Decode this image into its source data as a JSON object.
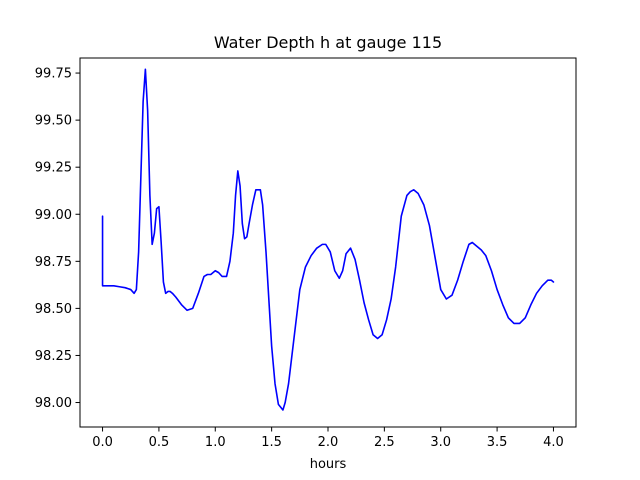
{
  "chart_data": {
    "type": "line",
    "title": "Water Depth h at gauge 115",
    "xlabel": "hours",
    "ylabel": "",
    "xlim": [
      -0.2,
      4.2
    ],
    "ylim": [
      97.87,
      99.83
    ],
    "grid": false,
    "legend": "none",
    "x_ticks": [
      0.0,
      0.5,
      1.0,
      1.5,
      2.0,
      2.5,
      3.0,
      3.5,
      4.0
    ],
    "x_tick_labels": [
      "0.0",
      "0.5",
      "1.0",
      "1.5",
      "2.0",
      "2.5",
      "3.0",
      "3.5",
      "4.0"
    ],
    "y_ticks": [
      98.0,
      98.25,
      98.5,
      98.75,
      99.0,
      99.25,
      99.5,
      99.75
    ],
    "y_tick_labels": [
      "98.00",
      "98.25",
      "98.50",
      "98.75",
      "99.00",
      "99.25",
      "99.50",
      "99.75"
    ],
    "series": [
      {
        "color": "#0000ff",
        "x": [
          0.0,
          0.0,
          0.05,
          0.1,
          0.15,
          0.2,
          0.25,
          0.28,
          0.3,
          0.32,
          0.34,
          0.36,
          0.38,
          0.4,
          0.42,
          0.44,
          0.46,
          0.48,
          0.5,
          0.52,
          0.54,
          0.56,
          0.58,
          0.6,
          0.62,
          0.65,
          0.7,
          0.75,
          0.8,
          0.85,
          0.9,
          0.93,
          0.96,
          1.0,
          1.03,
          1.06,
          1.1,
          1.13,
          1.16,
          1.18,
          1.2,
          1.22,
          1.24,
          1.26,
          1.28,
          1.3,
          1.33,
          1.36,
          1.4,
          1.42,
          1.45,
          1.48,
          1.5,
          1.53,
          1.56,
          1.6,
          1.62,
          1.65,
          1.7,
          1.75,
          1.8,
          1.85,
          1.9,
          1.95,
          1.98,
          2.02,
          2.06,
          2.1,
          2.13,
          2.16,
          2.2,
          2.24,
          2.28,
          2.32,
          2.36,
          2.4,
          2.44,
          2.48,
          2.52,
          2.56,
          2.6,
          2.65,
          2.7,
          2.73,
          2.76,
          2.8,
          2.85,
          2.9,
          2.95,
          3.0,
          3.05,
          3.1,
          3.15,
          3.2,
          3.25,
          3.28,
          3.32,
          3.36,
          3.4,
          3.45,
          3.5,
          3.55,
          3.6,
          3.65,
          3.7,
          3.75,
          3.8,
          3.85,
          3.9,
          3.95,
          3.98,
          4.0
        ],
        "y": [
          98.99,
          98.62,
          98.62,
          98.62,
          98.615,
          98.61,
          98.6,
          98.58,
          98.6,
          98.8,
          99.2,
          99.6,
          99.77,
          99.55,
          99.1,
          98.84,
          98.9,
          99.03,
          99.04,
          98.85,
          98.64,
          98.58,
          98.59,
          98.59,
          98.58,
          98.56,
          98.52,
          98.49,
          98.5,
          98.58,
          98.67,
          98.68,
          98.68,
          98.7,
          98.69,
          98.67,
          98.67,
          98.75,
          98.9,
          99.1,
          99.23,
          99.15,
          98.95,
          98.87,
          98.88,
          98.95,
          99.05,
          99.13,
          99.13,
          99.05,
          98.8,
          98.5,
          98.3,
          98.1,
          97.99,
          97.96,
          98.0,
          98.1,
          98.35,
          98.6,
          98.72,
          98.78,
          98.82,
          98.84,
          98.84,
          98.8,
          98.7,
          98.66,
          98.7,
          98.79,
          98.82,
          98.76,
          98.65,
          98.53,
          98.44,
          98.36,
          98.34,
          98.36,
          98.44,
          98.55,
          98.72,
          98.99,
          99.1,
          99.12,
          99.13,
          99.11,
          99.05,
          98.94,
          98.77,
          98.6,
          98.55,
          98.57,
          98.65,
          98.75,
          98.84,
          98.85,
          98.83,
          98.81,
          98.78,
          98.7,
          98.6,
          98.52,
          98.45,
          98.42,
          98.42,
          98.45,
          98.52,
          98.58,
          98.62,
          98.65,
          98.65,
          98.64
        ]
      }
    ]
  }
}
